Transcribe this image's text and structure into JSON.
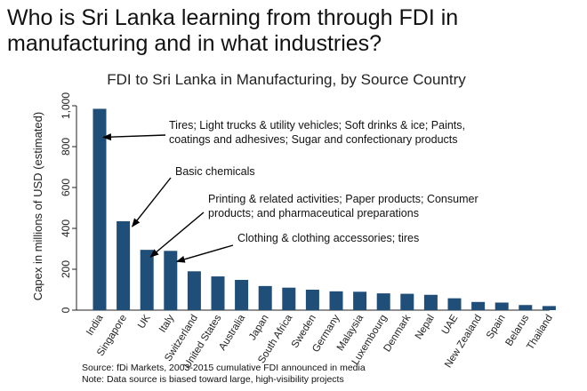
{
  "slide": {
    "title": "Who is Sri Lanka learning from through FDI in manufacturing and in what industries?"
  },
  "colors": {
    "bar": "#1f4e79",
    "axis": "#222222",
    "arrow": "#000000"
  },
  "chart_data": {
    "type": "bar",
    "title": "FDI to Sri Lanka in Manufacturing, by Source Country",
    "xlabel": "",
    "ylabel": "Capex in millions of USD (estimated)",
    "ylim": [
      0,
      1000
    ],
    "yticks": [
      0,
      200,
      400,
      600,
      800,
      1000
    ],
    "ytick_labels": [
      "0",
      "200",
      "400",
      "600",
      "800",
      "1,000"
    ],
    "grid": false,
    "categories": [
      "India",
      "Singapore",
      "UK",
      "Italy",
      "Switzerland",
      "United States",
      "Australia",
      "Japan",
      "South Africa",
      "Sweden",
      "Germany",
      "Malaysia",
      "Luxembourg",
      "Denmark",
      "Nepal",
      "UAE",
      "New Zealand",
      "Spain",
      "Belarus",
      "Thailand"
    ],
    "values": [
      985,
      435,
      295,
      290,
      190,
      165,
      148,
      118,
      110,
      100,
      92,
      90,
      82,
      80,
      75,
      58,
      40,
      37,
      25,
      20
    ],
    "annotations": [
      {
        "lines": [
          "Tires; Light trucks & utility vehicles; Soft drinks & ice; Paints,",
          "coatings and adhesives; Sugar and confectionary products"
        ],
        "target": "India"
      },
      {
        "lines": [
          "Basic chemicals"
        ],
        "target": "Singapore"
      },
      {
        "lines": [
          "Printing & related activities; Paper products; Consumer",
          "products; and pharmaceutical preparations"
        ],
        "target": "UK"
      },
      {
        "lines": [
          "Clothing & clothing accessories; tires"
        ],
        "target": "Italy"
      }
    ]
  },
  "footer": {
    "source": "Source: fDi Markets, 2003-2015 cumulative FDI announced in media",
    "note": "Note: Data source is biased toward large, high-visibility projects"
  }
}
